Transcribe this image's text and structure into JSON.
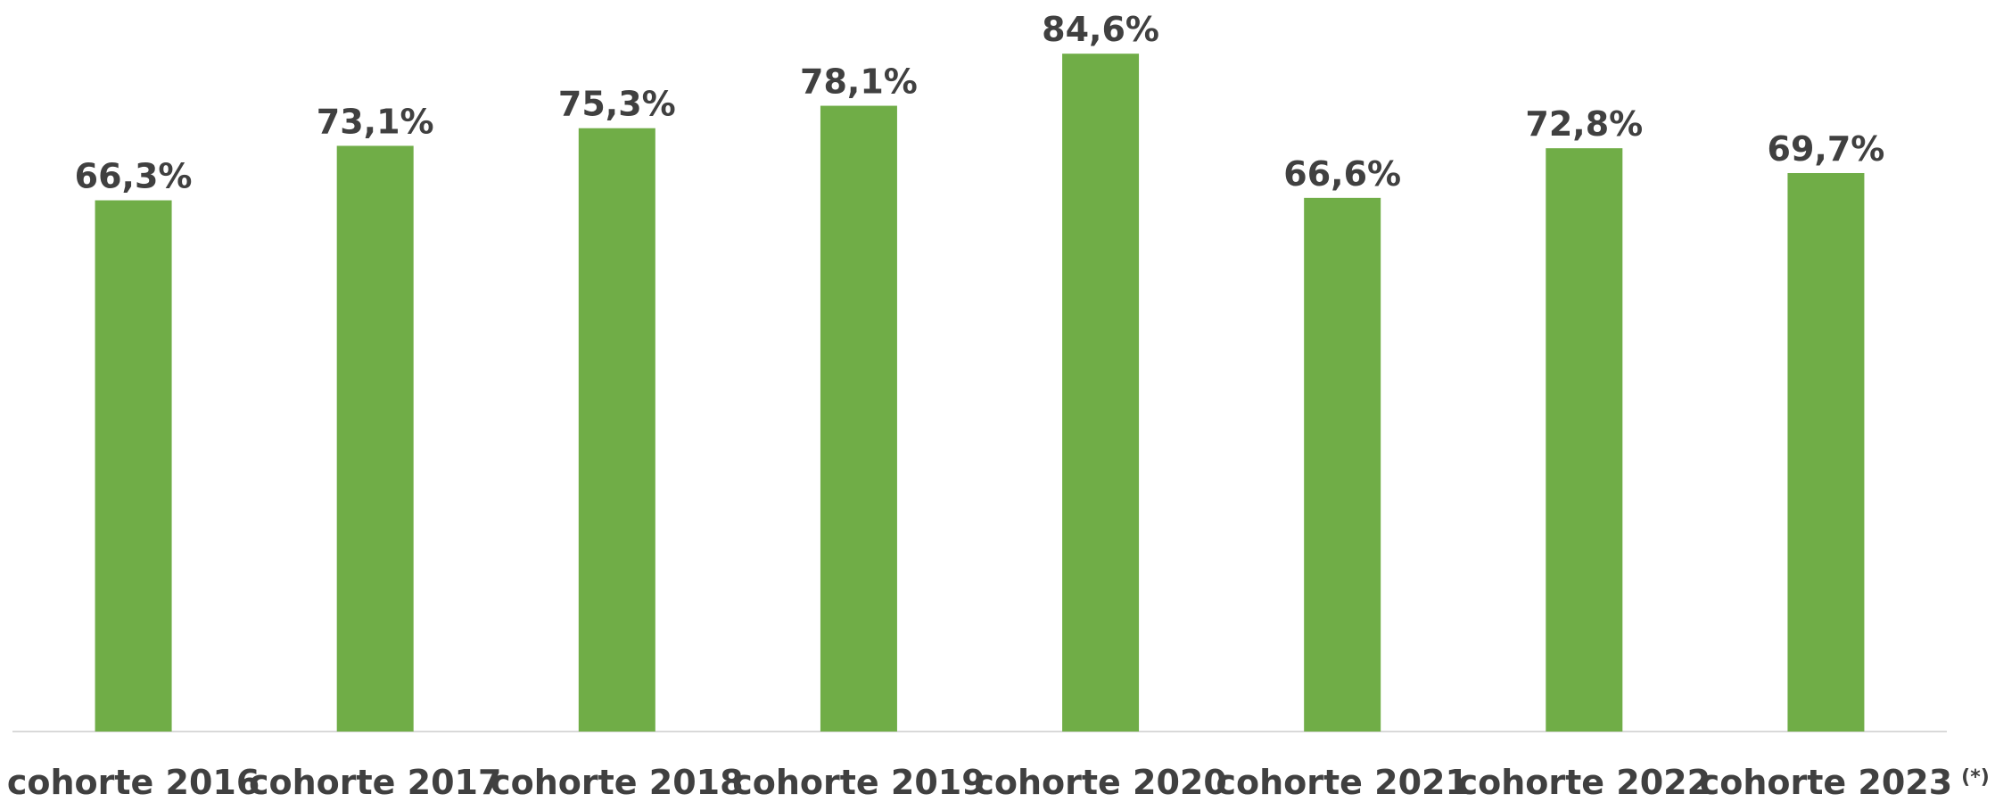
{
  "chart_data": {
    "type": "bar",
    "categories": [
      "cohorte 2016",
      "cohorte 2017",
      "cohorte 2018",
      "cohorte 2019",
      "cohorte 2020",
      "cohorte 2021",
      "cohorte 2022",
      "cohorte 2023"
    ],
    "values": [
      66.3,
      73.1,
      75.3,
      78.1,
      84.6,
      66.6,
      72.8,
      69.7
    ],
    "value_labels": [
      "66,3%",
      "73,1%",
      "75,3%",
      "78,1%",
      "84,6%",
      "66,6%",
      "72,8%",
      "69,7%"
    ],
    "annotation": "(*)",
    "color": "#70ad47",
    "ylim": [
      0,
      91.3
    ]
  }
}
